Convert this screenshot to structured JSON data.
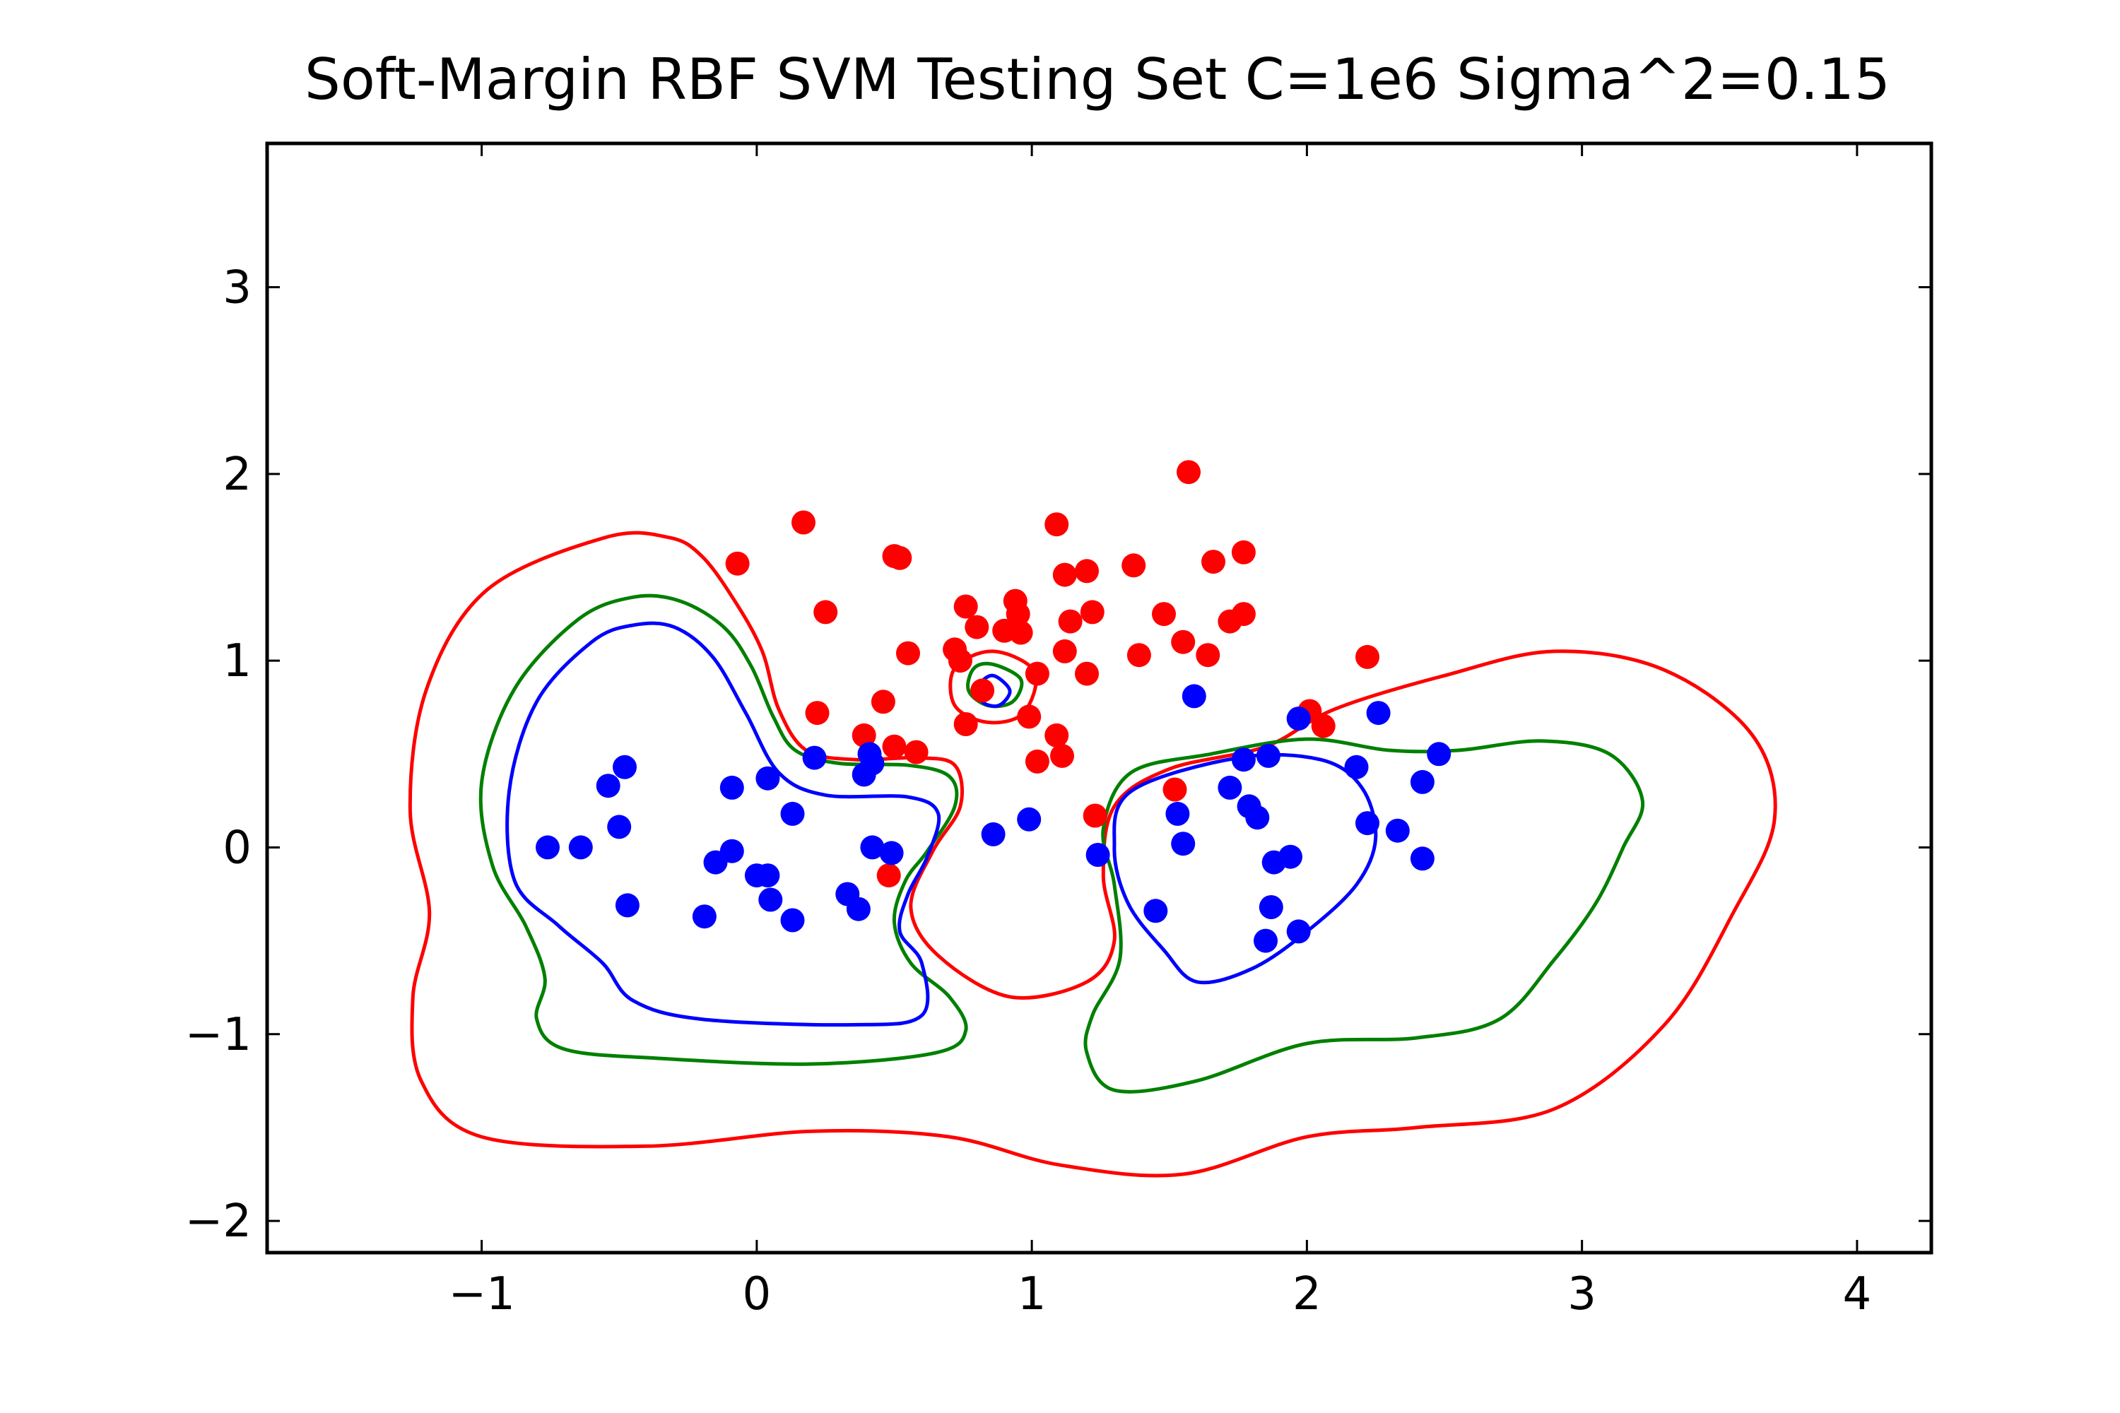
{
  "chart_data": {
    "type": "scatter",
    "title": "Soft-Margin RBF SVM Testing Set C=1e6 Sigma^2=0.15",
    "xlabel": "",
    "ylabel": "",
    "xlim": [
      -1.78,
      4.27
    ],
    "ylim": [
      -2.17,
      3.77
    ],
    "grid": false,
    "xticks": [
      -1,
      0,
      1,
      2,
      3,
      4
    ],
    "yticks": [
      -2,
      -1,
      0,
      1,
      2,
      3
    ],
    "xtick_labels": [
      "−1",
      "0",
      "1",
      "2",
      "3",
      "4"
    ],
    "ytick_labels": [
      "−2",
      "−1",
      "0",
      "1",
      "2",
      "3"
    ],
    "colors": {
      "positive_class": "#ff0000",
      "negative_class": "#0000ff",
      "boundary": "#008000",
      "margin_positive": "#ff0000",
      "margin_negative": "#0000ff"
    },
    "points": {
      "red": [
        [
          1.57,
          2.01
        ],
        [
          0.17,
          1.74
        ],
        [
          -0.07,
          1.52
        ],
        [
          0.5,
          1.56
        ],
        [
          0.52,
          1.55
        ],
        [
          0.25,
          1.26
        ],
        [
          1.09,
          1.73
        ],
        [
          1.12,
          1.46
        ],
        [
          1.2,
          1.48
        ],
        [
          1.37,
          1.51
        ],
        [
          1.66,
          1.53
        ],
        [
          1.77,
          1.58
        ],
        [
          0.76,
          1.29
        ],
        [
          0.94,
          1.32
        ],
        [
          0.95,
          1.25
        ],
        [
          0.8,
          1.18
        ],
        [
          0.9,
          1.16
        ],
        [
          0.96,
          1.15
        ],
        [
          1.14,
          1.21
        ],
        [
          1.22,
          1.26
        ],
        [
          1.48,
          1.25
        ],
        [
          1.55,
          1.1
        ],
        [
          1.72,
          1.21
        ],
        [
          1.77,
          1.25
        ],
        [
          0.55,
          1.04
        ],
        [
          0.72,
          1.06
        ],
        [
          0.74,
          1.0
        ],
        [
          1.12,
          1.05
        ],
        [
          1.39,
          1.03
        ],
        [
          1.64,
          1.03
        ],
        [
          2.22,
          1.02
        ],
        [
          1.2,
          0.93
        ],
        [
          1.02,
          0.93
        ],
        [
          0.82,
          0.84
        ],
        [
          0.46,
          0.78
        ],
        [
          0.22,
          0.72
        ],
        [
          0.76,
          0.66
        ],
        [
          0.99,
          0.7
        ],
        [
          0.39,
          0.6
        ],
        [
          0.5,
          0.54
        ],
        [
          0.58,
          0.51
        ],
        [
          1.09,
          0.6
        ],
        [
          1.11,
          0.49
        ],
        [
          1.02,
          0.46
        ],
        [
          2.01,
          0.73
        ],
        [
          2.06,
          0.65
        ],
        [
          1.52,
          0.31
        ],
        [
          1.23,
          0.17
        ],
        [
          0.48,
          -0.15
        ]
      ],
      "blue": [
        [
          1.59,
          0.81
        ],
        [
          2.26,
          0.72
        ],
        [
          1.97,
          0.69
        ],
        [
          2.48,
          0.5
        ],
        [
          1.86,
          0.49
        ],
        [
          1.77,
          0.47
        ],
        [
          2.18,
          0.43
        ],
        [
          2.42,
          0.35
        ],
        [
          1.72,
          0.32
        ],
        [
          1.79,
          0.22
        ],
        [
          1.82,
          0.16
        ],
        [
          1.53,
          0.18
        ],
        [
          2.22,
          0.13
        ],
        [
          2.33,
          0.09
        ],
        [
          1.55,
          0.02
        ],
        [
          1.88,
          -0.08
        ],
        [
          1.94,
          -0.05
        ],
        [
          2.42,
          -0.06
        ],
        [
          1.87,
          -0.32
        ],
        [
          1.45,
          -0.34
        ],
        [
          1.97,
          -0.45
        ],
        [
          1.85,
          -0.5
        ],
        [
          1.24,
          -0.04
        ],
        [
          0.86,
          0.07
        ],
        [
          0.99,
          0.15
        ],
        [
          0.21,
          0.48
        ],
        [
          0.41,
          0.5
        ],
        [
          0.42,
          0.45
        ],
        [
          0.39,
          0.39
        ],
        [
          0.04,
          0.37
        ],
        [
          -0.09,
          0.32
        ],
        [
          -0.48,
          0.43
        ],
        [
          -0.54,
          0.33
        ],
        [
          -0.5,
          0.11
        ],
        [
          0.13,
          0.18
        ],
        [
          -0.76,
          0.0
        ],
        [
          -0.64,
          0.0
        ],
        [
          0.42,
          0.0
        ],
        [
          0.49,
          -0.03
        ],
        [
          -0.09,
          -0.02
        ],
        [
          -0.15,
          -0.08
        ],
        [
          0.0,
          -0.15
        ],
        [
          0.04,
          -0.15
        ],
        [
          0.05,
          -0.28
        ],
        [
          0.33,
          -0.25
        ],
        [
          0.37,
          -0.33
        ],
        [
          -0.47,
          -0.31
        ],
        [
          -0.19,
          -0.37
        ],
        [
          0.13,
          -0.39
        ]
      ]
    },
    "contours": {
      "boundary_green": [
        [
          [
            -0.45,
            1.34
          ],
          [
            -0.28,
            1.32
          ],
          [
            -0.12,
            1.18
          ],
          [
            -0.02,
            0.97
          ],
          [
            0.06,
            0.7
          ],
          [
            0.14,
            0.52
          ],
          [
            0.3,
            0.45
          ],
          [
            0.55,
            0.44
          ],
          [
            0.7,
            0.38
          ],
          [
            0.72,
            0.22
          ],
          [
            0.62,
            -0.02
          ],
          [
            0.54,
            -0.18
          ],
          [
            0.5,
            -0.4
          ],
          [
            0.56,
            -0.62
          ],
          [
            0.7,
            -0.8
          ],
          [
            0.76,
            -0.98
          ],
          [
            0.65,
            -1.1
          ],
          [
            0.2,
            -1.16
          ],
          [
            -0.35,
            -1.13
          ],
          [
            -0.7,
            -1.08
          ],
          [
            -0.8,
            -0.92
          ],
          [
            -0.77,
            -0.7
          ],
          [
            -0.84,
            -0.42
          ],
          [
            -0.96,
            -0.1
          ],
          [
            -1.0,
            0.35
          ],
          [
            -0.88,
            0.85
          ],
          [
            -0.65,
            1.22
          ],
          [
            -0.45,
            1.34
          ]
        ],
        [
          [
            1.36,
            0.4
          ],
          [
            1.65,
            0.5
          ],
          [
            2.0,
            0.58
          ],
          [
            2.3,
            0.52
          ],
          [
            2.55,
            0.52
          ],
          [
            2.85,
            0.57
          ],
          [
            3.1,
            0.5
          ],
          [
            3.22,
            0.25
          ],
          [
            3.15,
            0.0
          ],
          [
            3.05,
            -0.3
          ],
          [
            2.9,
            -0.6
          ],
          [
            2.7,
            -0.92
          ],
          [
            2.4,
            -1.02
          ],
          [
            2.0,
            -1.05
          ],
          [
            1.6,
            -1.25
          ],
          [
            1.3,
            -1.3
          ],
          [
            1.2,
            -1.1
          ],
          [
            1.22,
            -0.9
          ],
          [
            1.32,
            -0.6
          ],
          [
            1.3,
            -0.2
          ],
          [
            1.26,
            0.1
          ],
          [
            1.36,
            0.4
          ]
        ],
        [
          [
            0.86,
            0.98
          ],
          [
            0.96,
            0.9
          ],
          [
            0.93,
            0.78
          ],
          [
            0.84,
            0.76
          ],
          [
            0.77,
            0.84
          ],
          [
            0.79,
            0.96
          ],
          [
            0.86,
            0.98
          ]
        ]
      ],
      "margin_red": [
        [
          [
            -0.55,
            1.66
          ],
          [
            -0.32,
            1.66
          ],
          [
            -0.2,
            1.56
          ],
          [
            -0.08,
            1.32
          ],
          [
            0.02,
            1.05
          ],
          [
            0.08,
            0.74
          ],
          [
            0.18,
            0.52
          ],
          [
            0.36,
            0.47
          ],
          [
            0.58,
            0.48
          ],
          [
            0.72,
            0.44
          ],
          [
            0.74,
            0.22
          ],
          [
            0.64,
            -0.02
          ],
          [
            0.56,
            -0.32
          ],
          [
            0.66,
            -0.58
          ],
          [
            0.92,
            -0.8
          ],
          [
            1.2,
            -0.72
          ],
          [
            1.3,
            -0.5
          ],
          [
            1.26,
            -0.15
          ],
          [
            1.3,
            0.22
          ],
          [
            1.5,
            0.42
          ],
          [
            1.85,
            0.54
          ],
          [
            2.1,
            0.74
          ],
          [
            2.5,
            0.92
          ],
          [
            2.9,
            1.05
          ],
          [
            3.3,
            0.95
          ],
          [
            3.62,
            0.6
          ],
          [
            3.7,
            0.15
          ],
          [
            3.55,
            -0.35
          ],
          [
            3.3,
            -0.95
          ],
          [
            2.9,
            -1.4
          ],
          [
            2.4,
            -1.5
          ],
          [
            2.0,
            -1.55
          ],
          [
            1.55,
            -1.75
          ],
          [
            1.1,
            -1.7
          ],
          [
            0.7,
            -1.55
          ],
          [
            0.2,
            -1.52
          ],
          [
            -0.4,
            -1.6
          ],
          [
            -1.0,
            -1.55
          ],
          [
            -1.22,
            -1.25
          ],
          [
            -1.25,
            -0.8
          ],
          [
            -1.19,
            -0.35
          ],
          [
            -1.26,
            0.2
          ],
          [
            -1.2,
            0.85
          ],
          [
            -0.98,
            1.38
          ],
          [
            -0.55,
            1.66
          ]
        ],
        [
          [
            0.86,
            1.05
          ],
          [
            1.01,
            0.94
          ],
          [
            0.97,
            0.72
          ],
          [
            0.84,
            0.67
          ],
          [
            0.72,
            0.76
          ],
          [
            0.72,
            0.96
          ],
          [
            0.86,
            1.05
          ]
        ]
      ],
      "margin_blue": [
        [
          [
            -0.45,
            1.19
          ],
          [
            -0.3,
            1.18
          ],
          [
            -0.16,
            1.02
          ],
          [
            -0.04,
            0.72
          ],
          [
            0.08,
            0.4
          ],
          [
            0.25,
            0.28
          ],
          [
            0.55,
            0.27
          ],
          [
            0.66,
            0.18
          ],
          [
            0.62,
            -0.05
          ],
          [
            0.55,
            -0.25
          ],
          [
            0.52,
            -0.45
          ],
          [
            0.6,
            -0.62
          ],
          [
            0.6,
            -0.9
          ],
          [
            0.35,
            -0.95
          ],
          [
            -0.2,
            -0.92
          ],
          [
            -0.45,
            -0.82
          ],
          [
            -0.56,
            -0.62
          ],
          [
            -0.72,
            -0.42
          ],
          [
            -0.88,
            -0.18
          ],
          [
            -0.9,
            0.3
          ],
          [
            -0.8,
            0.78
          ],
          [
            -0.6,
            1.1
          ],
          [
            -0.45,
            1.19
          ]
        ],
        [
          [
            1.36,
            0.3
          ],
          [
            1.75,
            0.48
          ],
          [
            2.05,
            0.47
          ],
          [
            2.2,
            0.32
          ],
          [
            2.25,
            0.05
          ],
          [
            2.18,
            -0.2
          ],
          [
            2.0,
            -0.45
          ],
          [
            1.8,
            -0.65
          ],
          [
            1.6,
            -0.72
          ],
          [
            1.48,
            -0.55
          ],
          [
            1.35,
            -0.3
          ],
          [
            1.3,
            0.0
          ],
          [
            1.36,
            0.3
          ]
        ],
        [
          [
            0.86,
            0.92
          ],
          [
            0.92,
            0.84
          ],
          [
            0.88,
            0.76
          ],
          [
            0.82,
            0.78
          ],
          [
            0.81,
            0.87
          ],
          [
            0.86,
            0.92
          ]
        ]
      ]
    }
  }
}
